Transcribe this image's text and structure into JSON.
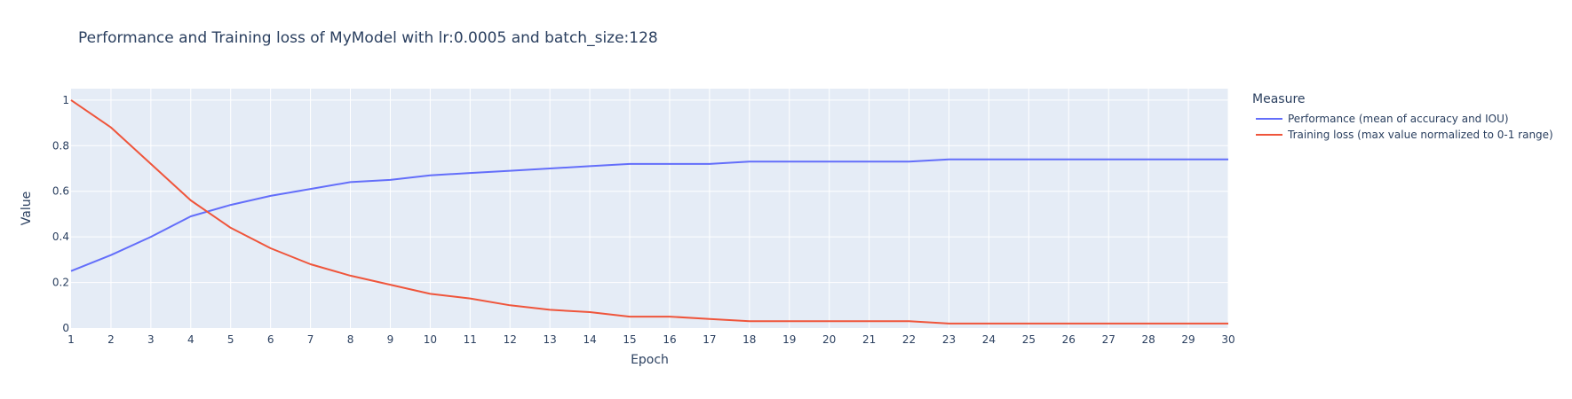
{
  "chart_data": {
    "type": "line",
    "title": "Performance and Training loss of MyModel with lr:0.0005 and batch_size:128",
    "xlabel": "Epoch",
    "ylabel": "Value",
    "x": [
      1,
      2,
      3,
      4,
      5,
      6,
      7,
      8,
      9,
      10,
      11,
      12,
      13,
      14,
      15,
      16,
      17,
      18,
      19,
      20,
      21,
      22,
      23,
      24,
      25,
      26,
      27,
      28,
      29,
      30
    ],
    "xlim": [
      1,
      30
    ],
    "ylim": [
      0,
      1.05
    ],
    "yticks": [
      0,
      0.2,
      0.4,
      0.6,
      0.8,
      1
    ],
    "ytick_labels": [
      "0",
      "0.2",
      "0.4",
      "0.6",
      "0.8",
      "1"
    ],
    "grid": true,
    "plot_background": "#E5ECF6",
    "legend": {
      "title": "Measure",
      "placement": "right"
    },
    "series": [
      {
        "name": "Performance (mean of accuracy and IOU)",
        "color": "#636EFA",
        "values": [
          0.25,
          0.32,
          0.4,
          0.49,
          0.54,
          0.58,
          0.61,
          0.64,
          0.65,
          0.67,
          0.68,
          0.69,
          0.7,
          0.71,
          0.72,
          0.72,
          0.72,
          0.73,
          0.73,
          0.73,
          0.73,
          0.73,
          0.74,
          0.74,
          0.74,
          0.74,
          0.74,
          0.74,
          0.74,
          0.74
        ]
      },
      {
        "name": "Training loss (max value normalized to 0-1 range)",
        "color": "#EF553B",
        "values": [
          1.0,
          0.88,
          0.72,
          0.56,
          0.44,
          0.35,
          0.28,
          0.23,
          0.19,
          0.15,
          0.13,
          0.1,
          0.08,
          0.07,
          0.05,
          0.05,
          0.04,
          0.03,
          0.03,
          0.03,
          0.03,
          0.03,
          0.02,
          0.02,
          0.02,
          0.02,
          0.02,
          0.02,
          0.02,
          0.02
        ]
      }
    ]
  }
}
